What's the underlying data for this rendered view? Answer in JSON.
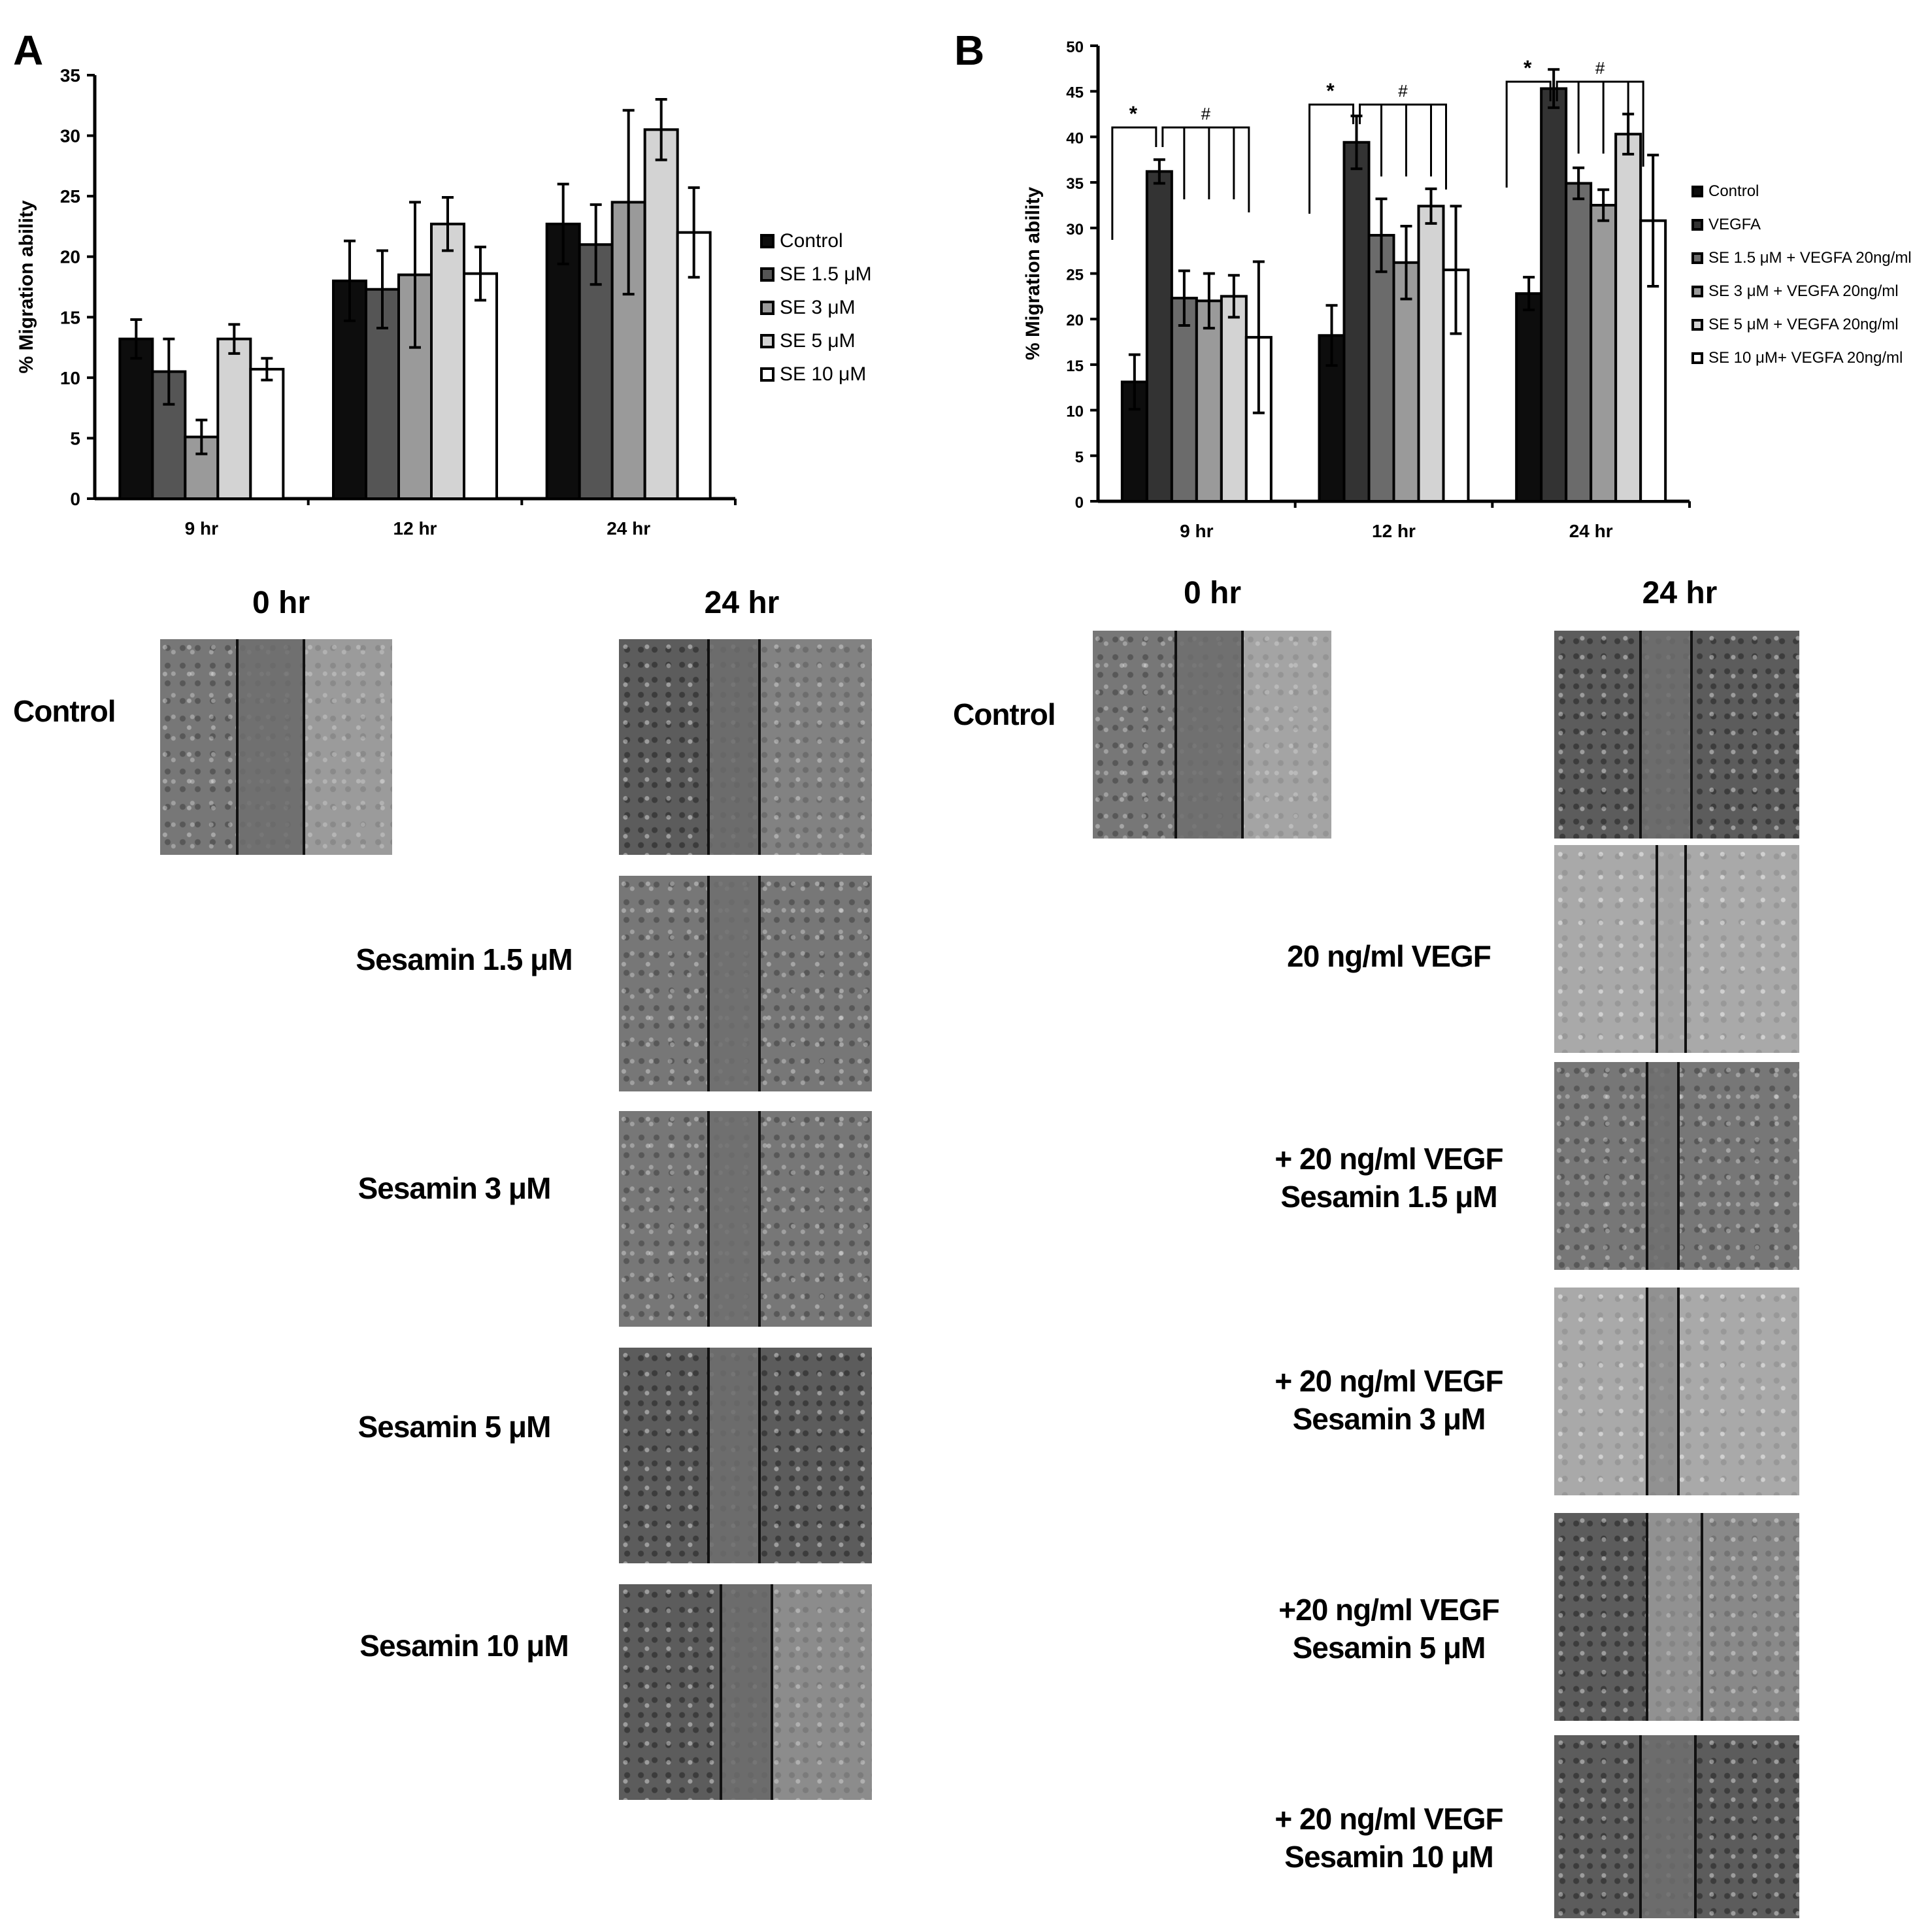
{
  "panel_a": {
    "letter": "A",
    "zero_hr": "0 hr",
    "day_hr": "24 hr",
    "rows": [
      {
        "label": "Control"
      },
      {
        "label": "Sesamin 1.5 μM"
      },
      {
        "label": "Sesamin 3 μM"
      },
      {
        "label": "Sesamin 5 μM"
      },
      {
        "label": "Sesamin 10 μM"
      }
    ]
  },
  "panel_b": {
    "letter": "B",
    "zero_hr": "0 hr",
    "day_hr": "24 hr",
    "rows": [
      {
        "label": "Control"
      },
      {
        "label": "20 ng/ml VEGF"
      },
      {
        "label": "+ 20 ng/ml VEGF\nSesamin 1.5 μM"
      },
      {
        "label": "+ 20 ng/ml VEGF\nSesamin 3 μM"
      },
      {
        "label": "+20 ng/ml VEGF\nSesamin 5 μM"
      },
      {
        "label": "+ 20 ng/ml VEGF\nSesamin 10 μM"
      }
    ]
  },
  "colors": {
    "s1": "#0d0d0d",
    "s2": "#555555",
    "s3": "#9a9a9a",
    "s4": "#d3d3d3",
    "s5": "#ffffff"
  },
  "chart_data": [
    {
      "type": "bar",
      "title": "",
      "xlabel": "",
      "ylabel": "% Migration ability",
      "ylim": [
        0,
        35
      ],
      "yticks": [
        0,
        5,
        10,
        15,
        20,
        25,
        30,
        35
      ],
      "categories": [
        "9 hr",
        "12 hr",
        "24 hr"
      ],
      "legend_position": "right",
      "series": [
        {
          "name": "Control",
          "values": [
            13.2,
            18.0,
            22.7
          ],
          "errors": [
            1.6,
            3.3,
            3.3
          ]
        },
        {
          "name": "SE 1.5 μM",
          "values": [
            10.5,
            17.3,
            21.0
          ],
          "errors": [
            2.7,
            3.2,
            3.3
          ]
        },
        {
          "name": "SE 3  μM",
          "values": [
            5.1,
            18.5,
            24.5
          ],
          "errors": [
            1.4,
            6.0,
            7.6
          ]
        },
        {
          "name": "SE 5  μM",
          "values": [
            13.2,
            22.7,
            30.5
          ],
          "errors": [
            1.2,
            2.2,
            2.5
          ]
        },
        {
          "name": "SE 10  μM",
          "values": [
            10.7,
            18.6,
            22.0
          ],
          "errors": [
            0.9,
            2.2,
            3.7
          ]
        }
      ]
    },
    {
      "type": "bar",
      "title": "",
      "xlabel": "",
      "ylabel": "% Migration ability",
      "ylim": [
        0,
        50
      ],
      "yticks": [
        0,
        5,
        10,
        15,
        20,
        25,
        30,
        35,
        40,
        45,
        50
      ],
      "categories": [
        "9 hr",
        "12 hr",
        "24 hr"
      ],
      "legend_position": "right",
      "significance": {
        "star": "*",
        "hash": "#"
      },
      "series": [
        {
          "name": "Control",
          "values": [
            13.1,
            18.2,
            22.8
          ],
          "errors": [
            3.0,
            3.3,
            1.8
          ]
        },
        {
          "name": "VEGFA",
          "values": [
            36.2,
            39.4,
            45.3
          ],
          "errors": [
            1.3,
            2.9,
            2.1
          ]
        },
        {
          "name": "SE 1.5 μM + VEGFA 20ng/ml",
          "values": [
            22.3,
            29.2,
            34.9
          ],
          "errors": [
            3.0,
            4.0,
            1.7
          ]
        },
        {
          "name": "SE 3  μM + VEGFA 20ng/ml",
          "values": [
            22.0,
            26.2,
            32.5
          ],
          "errors": [
            3.0,
            4.0,
            1.7
          ]
        },
        {
          "name": "SE 5  μM + VEGFA 20ng/ml",
          "values": [
            22.5,
            32.4,
            40.3
          ],
          "errors": [
            2.3,
            1.9,
            2.2
          ]
        },
        {
          "name": "SE 10  μM+ VEGFA 20ng/ml",
          "values": [
            18.0,
            25.4,
            30.8
          ],
          "errors": [
            8.3,
            7.0,
            7.2
          ]
        }
      ]
    }
  ]
}
